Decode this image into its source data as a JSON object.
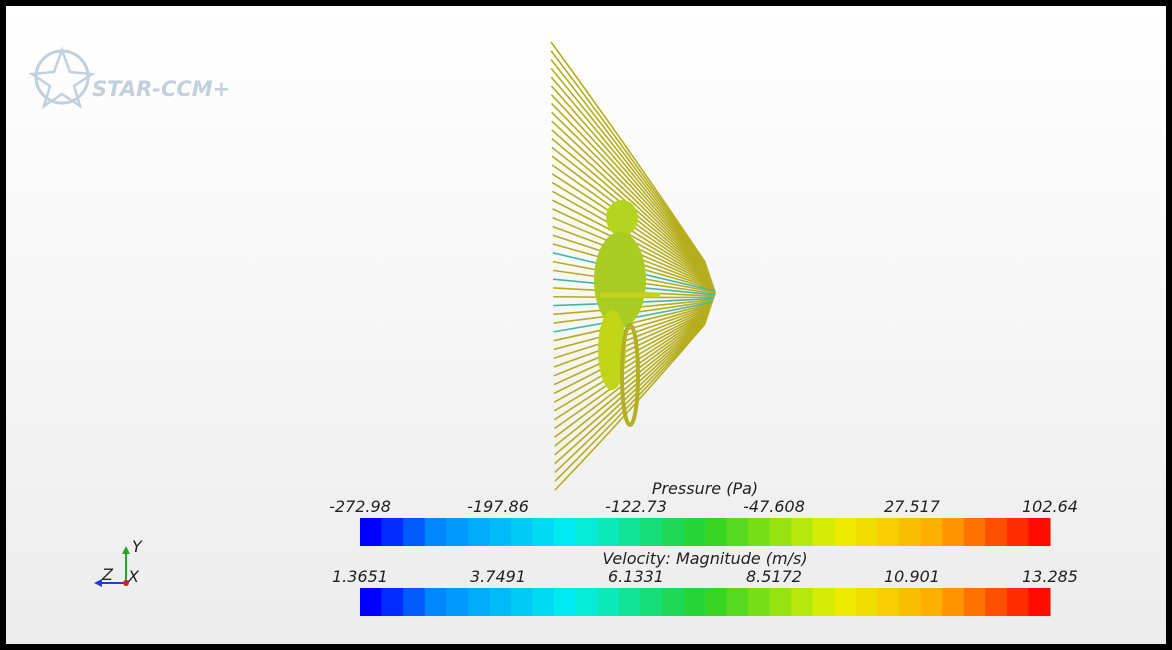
{
  "logo": {
    "text": "STAR-CCM+"
  },
  "scalar_bars": [
    {
      "title": "Pressure (Pa)",
      "ticks": [
        -272.98,
        -197.86,
        -122.73,
        -47.608,
        27.517,
        102.64
      ]
    },
    {
      "title": "Velocity: Magnitude (m/s)",
      "ticks": [
        1.3651,
        3.7491,
        6.1331,
        8.5172,
        10.901,
        13.285
      ]
    }
  ],
  "axes_triad": {
    "y": "Y",
    "z": "Z",
    "x": "X"
  }
}
